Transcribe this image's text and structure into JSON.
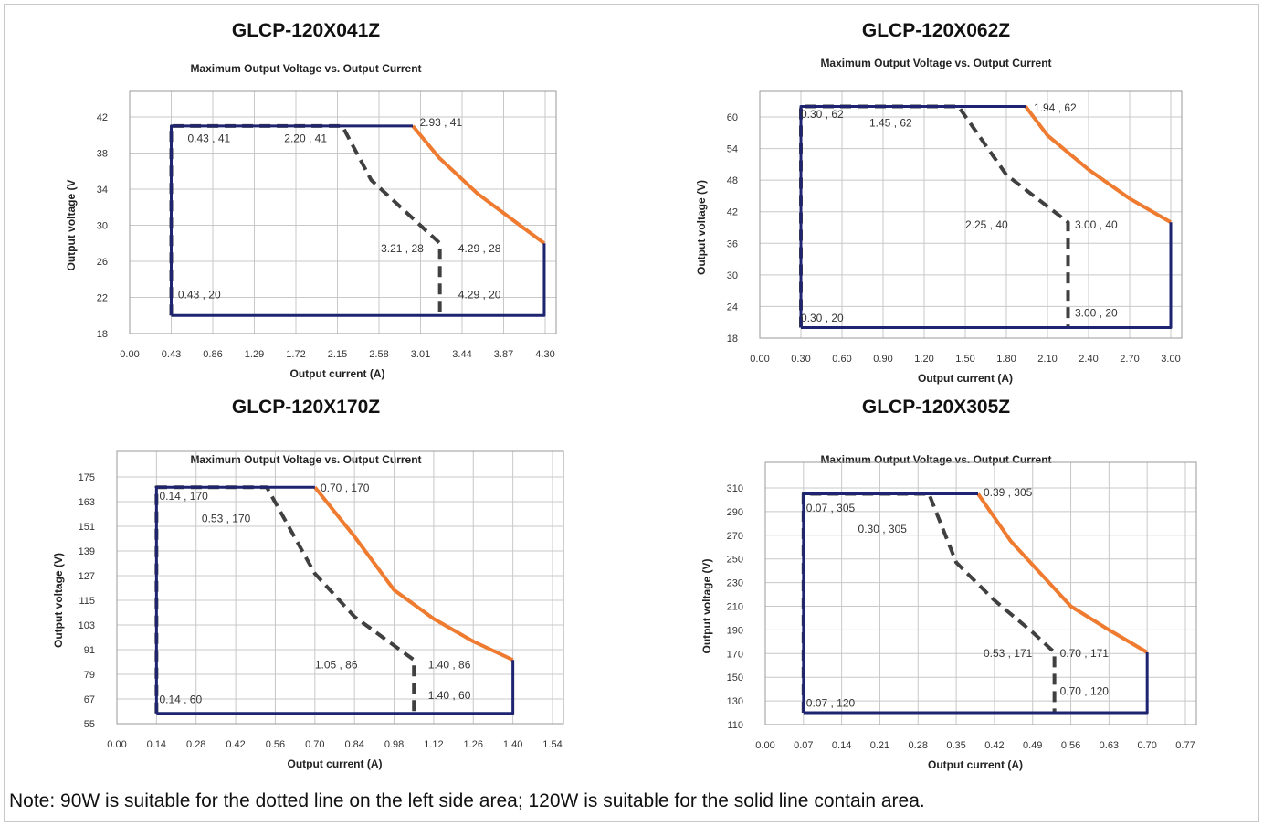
{
  "note": "Note: 90W is suitable for the dotted line on the left side area; 120W is suitable for the solid line contain area.",
  "colors": {
    "dark_blue": "#1f2470",
    "orange": "#ee7b30",
    "dash_gray": "#404040",
    "grid": "#c8c8c8"
  },
  "chart_data": [
    {
      "type": "line",
      "model": "GLCP-120X041Z",
      "title": "Maximum Output Voltage vs. Output Current",
      "xlabel": "Output current (A)",
      "ylabel": "Output voltage (V",
      "xticks": [
        "0.00",
        "0.43",
        "0.86",
        "1.29",
        "1.72",
        "2.15",
        "2.58",
        "3.01",
        "3.44",
        "3.87",
        "4.30"
      ],
      "yticks": [
        "18",
        "22",
        "26",
        "30",
        "34",
        "38",
        "42"
      ],
      "xlim": [
        0,
        4.3
      ],
      "ylim": [
        18,
        42
      ],
      "series": [
        {
          "style": "dashed",
          "x": [
            0.43,
            0.43,
            2.2,
            2.5,
            3.21,
            3.21
          ],
          "y": [
            20,
            41,
            41,
            35,
            28,
            20
          ]
        },
        {
          "style": "solid-orange",
          "x": [
            2.93,
            3.2,
            3.6,
            4.0,
            4.29
          ],
          "y": [
            41,
            37.5,
            33.5,
            30.3,
            28
          ]
        },
        {
          "style": "solid-blue",
          "x": [
            0.43,
            0.43,
            2.93
          ],
          "y": [
            20,
            41,
            41
          ]
        },
        {
          "style": "solid-blue",
          "x": [
            4.29,
            4.29,
            0.43
          ],
          "y": [
            28,
            20,
            20
          ]
        }
      ],
      "annotations": [
        {
          "text": "0.43 , 41",
          "x": 0.6,
          "y": 39.2
        },
        {
          "text": "2.20 , 41",
          "x": 1.6,
          "y": 39.2
        },
        {
          "text": "2.93 , 41",
          "x": 3.0,
          "y": 41
        },
        {
          "text": "3.21 , 28",
          "x": 2.6,
          "y": 27
        },
        {
          "text": "4.29 , 28",
          "x": 3.4,
          "y": 27
        },
        {
          "text": "0.43 , 20",
          "x": 0.5,
          "y": 21.9
        },
        {
          "text": "4.29 , 20",
          "x": 3.4,
          "y": 21.9
        }
      ]
    },
    {
      "type": "line",
      "model": "GLCP-120X062Z",
      "title": "Maximum Output Voltage vs. Output Current",
      "xlabel": "Output current (A)",
      "ylabel": "Output voltage (V)",
      "xticks": [
        "0.00",
        "0.30",
        "0.60",
        "0.90",
        "1.20",
        "1.50",
        "1.80",
        "2.10",
        "2.40",
        "2.70",
        "3.00"
      ],
      "yticks": [
        "18",
        "24",
        "30",
        "36",
        "42",
        "48",
        "54",
        "60"
      ],
      "xlim": [
        0,
        3.0
      ],
      "ylim": [
        18,
        60
      ],
      "series": [
        {
          "style": "dashed",
          "x": [
            0.3,
            0.3,
            1.45,
            1.8,
            2.25,
            2.25
          ],
          "y": [
            20,
            62,
            62,
            49,
            40,
            20
          ]
        },
        {
          "style": "solid-orange",
          "x": [
            1.94,
            2.1,
            2.4,
            2.7,
            3.0
          ],
          "y": [
            62,
            56.5,
            50,
            44.5,
            40
          ]
        },
        {
          "style": "solid-blue",
          "x": [
            0.3,
            0.3,
            1.94
          ],
          "y": [
            20,
            62,
            62
          ]
        },
        {
          "style": "solid-blue",
          "x": [
            3.0,
            3.0,
            0.3
          ],
          "y": [
            40,
            20,
            20
          ]
        }
      ],
      "annotations": [
        {
          "text": "0.30 , 62",
          "x": 0.3,
          "y": 59.8
        },
        {
          "text": "1.45 , 62",
          "x": 0.8,
          "y": 58.2
        },
        {
          "text": "1.94 , 62",
          "x": 2.0,
          "y": 61
        },
        {
          "text": "2.25 , 40",
          "x": 1.5,
          "y": 38.8
        },
        {
          "text": "3.00 , 40",
          "x": 2.3,
          "y": 38.8
        },
        {
          "text": "0.30 , 20",
          "x": 0.3,
          "y": 21.1
        },
        {
          "text": "3.00 , 20",
          "x": 2.3,
          "y": 22.1
        }
      ]
    },
    {
      "type": "line",
      "model": "GLCP-120X170Z",
      "title": "Maximum Output Voltage vs. Output Current",
      "xlabel": "Output current (A)",
      "ylabel": "Output voltage (V)",
      "xticks": [
        "0.00",
        "0.14",
        "0.28",
        "0.42",
        "0.56",
        "0.70",
        "0.84",
        "0.98",
        "1.12",
        "1.26",
        "1.40",
        "1.54"
      ],
      "yticks": [
        "55",
        "67",
        "79",
        "91",
        "103",
        "115",
        "127",
        "139",
        "151",
        "163",
        "175"
      ],
      "xlim": [
        0,
        1.54
      ],
      "ylim": [
        55,
        175
      ],
      "series": [
        {
          "style": "dashed",
          "x": [
            0.14,
            0.14,
            0.53,
            0.7,
            0.84,
            0.98,
            1.05,
            1.05
          ],
          "y": [
            60,
            170,
            170,
            128,
            107,
            93,
            86,
            60
          ]
        },
        {
          "style": "solid-orange",
          "x": [
            0.7,
            0.84,
            0.98,
            1.12,
            1.26,
            1.4
          ],
          "y": [
            170,
            146,
            120,
            106,
            95,
            86
          ]
        },
        {
          "style": "solid-blue",
          "x": [
            0.14,
            0.14,
            0.7
          ],
          "y": [
            60,
            170,
            170
          ]
        },
        {
          "style": "solid-blue",
          "x": [
            1.4,
            1.4,
            0.14
          ],
          "y": [
            86,
            60,
            60
          ]
        }
      ],
      "annotations": [
        {
          "text": "0.14 , 170",
          "x": 0.15,
          "y": 164
        },
        {
          "text": "0.53 , 170",
          "x": 0.3,
          "y": 153
        },
        {
          "text": "0.70 , 170",
          "x": 0.72,
          "y": 168
        },
        {
          "text": "1.05 , 86",
          "x": 0.7,
          "y": 82
        },
        {
          "text": "1.40 , 86",
          "x": 1.1,
          "y": 82
        },
        {
          "text": "0.14 , 60",
          "x": 0.15,
          "y": 65
        },
        {
          "text": "1.40 , 60",
          "x": 1.1,
          "y": 67
        }
      ]
    },
    {
      "type": "line",
      "model": "GLCP-120X305Z",
      "title": "Maximum Output Voltage vs. Output Current",
      "xlabel": "Output current (A)",
      "ylabel": "Output voltage (V)",
      "xticks": [
        "0.00",
        "0.07",
        "0.14",
        "0.21",
        "0.28",
        "0.35",
        "0.42",
        "0.49",
        "0.56",
        "0.63",
        "0.70",
        "0.77"
      ],
      "yticks": [
        "110",
        "130",
        "150",
        "170",
        "190",
        "210",
        "230",
        "250",
        "270",
        "290",
        "310"
      ],
      "xlim": [
        0,
        0.77
      ],
      "ylim": [
        110,
        310
      ],
      "series": [
        {
          "style": "dashed",
          "x": [
            0.07,
            0.07,
            0.3,
            0.35,
            0.42,
            0.49,
            0.53,
            0.53
          ],
          "y": [
            120,
            305,
            305,
            247,
            215,
            188,
            171,
            120
          ]
        },
        {
          "style": "solid-orange",
          "x": [
            0.39,
            0.45,
            0.56,
            0.63,
            0.7
          ],
          "y": [
            305,
            265,
            210,
            190,
            171
          ]
        },
        {
          "style": "solid-blue",
          "x": [
            0.07,
            0.07,
            0.39
          ],
          "y": [
            120,
            305,
            305
          ]
        },
        {
          "style": "solid-blue",
          "x": [
            0.7,
            0.7,
            0.07
          ],
          "y": [
            171,
            120,
            120
          ]
        }
      ],
      "annotations": [
        {
          "text": "0.07 , 305",
          "x": 0.075,
          "y": 290
        },
        {
          "text": "0.30 , 305",
          "x": 0.17,
          "y": 272
        },
        {
          "text": "0.39 , 305",
          "x": 0.4,
          "y": 303
        },
        {
          "text": "0.53 , 171",
          "x": 0.4,
          "y": 167
        },
        {
          "text": "0.70 , 171",
          "x": 0.54,
          "y": 167
        },
        {
          "text": "0.70 , 120",
          "x": 0.54,
          "y": 135
        },
        {
          "text": "0.07 , 120",
          "x": 0.075,
          "y": 125
        }
      ]
    }
  ]
}
